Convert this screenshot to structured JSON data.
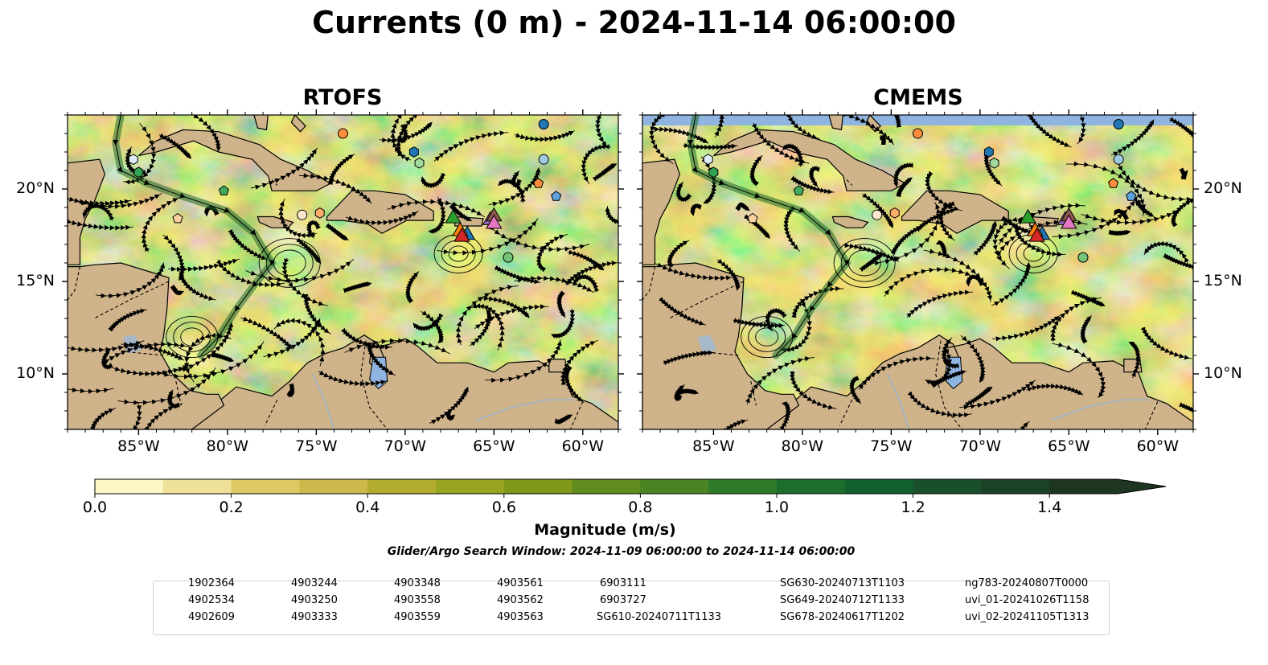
{
  "title": "Currents (0 m) - 2024-11-14 06:00:00",
  "panels": [
    {
      "title": "RTOFS"
    },
    {
      "title": "CMEMS"
    }
  ],
  "map": {
    "lon_range": [
      -89,
      -58
    ],
    "lat_range": [
      7,
      24
    ],
    "lon_ticks": [
      "85°W",
      "80°W",
      "75°W",
      "70°W",
      "65°W",
      "60°W"
    ],
    "lat_ticks": [
      "20°N",
      "15°N",
      "10°N"
    ],
    "colors": {
      "land": "#cfb38a",
      "lake": "#8fb4e0",
      "ocean_low": "#f7efb6",
      "ocean_mid": "#bdb54a",
      "ocean_high": "#1f6b2a"
    }
  },
  "colorbar": {
    "label": "Magnitude (m/s)",
    "range": [
      0,
      1.5
    ],
    "extend": "max",
    "ticks": [
      "0.0",
      "0.2",
      "0.4",
      "0.6",
      "0.8",
      "1.0",
      "1.2",
      "1.4"
    ],
    "colors": [
      "#fbf6c3",
      "#efe09a",
      "#ddc863",
      "#cdb94b",
      "#b3ad2f",
      "#98a51f",
      "#7f9a18",
      "#5f8c1c",
      "#4b8422",
      "#2e7a28",
      "#1d6d2c",
      "#12602e",
      "#194f2b",
      "#1c4226",
      "#1d3521"
    ]
  },
  "search_window": "Glider/Argo Search Window: 2024-11-09 06:00:00 to 2024-11-14 06:00:00",
  "legend": {
    "columns": [
      [
        {
          "label": "1902364",
          "marker": "circle",
          "color": "#1f77b4"
        },
        {
          "label": "4902534",
          "marker": "hexagon",
          "color": "#1f77b4"
        },
        {
          "label": "4902609",
          "marker": "pentagon",
          "color": "#5fa2dd"
        }
      ],
      [
        {
          "label": "4903244",
          "marker": "circle",
          "color": "#9ecae1"
        },
        {
          "label": "4903250",
          "marker": "hexagon",
          "color": "#deebf7"
        },
        {
          "label": "4903333",
          "marker": "pentagon",
          "color": "#fd8d3c"
        }
      ],
      [
        {
          "label": "4903348",
          "marker": "circle",
          "color": "#fd8d3c"
        },
        {
          "label": "4903558",
          "marker": "hexagon",
          "color": "#fdae6b"
        },
        {
          "label": "4903559",
          "marker": "pentagon",
          "color": "#fdd0a2"
        }
      ],
      [
        {
          "label": "4903561",
          "marker": "circle",
          "color": "#fee6ce"
        },
        {
          "label": "4903562",
          "marker": "hexagon",
          "color": "#31a354"
        },
        {
          "label": "4903563",
          "marker": "pentagon",
          "color": "#41ab5d"
        }
      ],
      [
        {
          "label": "6903111",
          "marker": "circle",
          "color": "#74c476"
        },
        {
          "label": "6903727",
          "marker": "hexagon",
          "color": "#a1d99b"
        },
        {
          "label": "SG610-20240711T1133",
          "marker": "triangle",
          "color": "#1f77b4"
        }
      ],
      [
        {
          "label": "SG630-20240713T1103",
          "marker": "triangle",
          "color": "#ff7f0e"
        },
        {
          "label": "SG649-20240712T1133",
          "marker": "triangle",
          "color": "#2ca02c"
        },
        {
          "label": "SG678-20240617T1202",
          "marker": "triangle",
          "color": "#d62728"
        }
      ],
      [
        {
          "label": "ng783-20240807T0000",
          "marker": "triangle",
          "color": "#9467bd"
        },
        {
          "label": "uvi_01-20241026T1158",
          "marker": "triangle",
          "color": "#8c564b"
        },
        {
          "label": "uvi_02-20241105T1313",
          "marker": "triangle",
          "color": "#e377c2"
        }
      ]
    ]
  },
  "observations": [
    {
      "id": "1902364",
      "lon": -62.2,
      "lat": 23.5
    },
    {
      "id": "4902534",
      "lon": -69.5,
      "lat": 22.0
    },
    {
      "id": "4902609",
      "lon": -61.5,
      "lat": 19.6
    },
    {
      "id": "4903244",
      "lon": -62.2,
      "lat": 21.6
    },
    {
      "id": "4903250",
      "lon": -85.3,
      "lat": 21.6
    },
    {
      "id": "4903333",
      "lon": -62.5,
      "lat": 20.3
    },
    {
      "id": "4903348",
      "lon": -73.5,
      "lat": 23.0
    },
    {
      "id": "4903558",
      "lon": -74.8,
      "lat": 18.7
    },
    {
      "id": "4903559",
      "lon": -82.8,
      "lat": 18.4
    },
    {
      "id": "4903561",
      "lon": -75.8,
      "lat": 18.6
    },
    {
      "id": "4903562",
      "lon": -85.0,
      "lat": 20.9
    },
    {
      "id": "4903563",
      "lon": -80.2,
      "lat": 19.9
    },
    {
      "id": "6903111",
      "lon": -64.2,
      "lat": 16.3
    },
    {
      "id": "6903727",
      "lon": -69.2,
      "lat": 21.4
    },
    {
      "id": "SG610-20240711T1133",
      "lon": -66.5,
      "lat": 17.6
    },
    {
      "id": "SG630-20240713T1103",
      "lon": -66.9,
      "lat": 17.8
    },
    {
      "id": "SG649-20240712T1133",
      "lon": -67.3,
      "lat": 18.5
    },
    {
      "id": "SG678-20240617T1202",
      "lon": -66.8,
      "lat": 17.5
    },
    {
      "id": "ng783-20240807T0000",
      "lon": -65.2,
      "lat": 18.4
    },
    {
      "id": "uvi_01-20241026T1158",
      "lon": -65.0,
      "lat": 18.6
    },
    {
      "id": "uvi_02-20241105T1313",
      "lon": -65.0,
      "lat": 18.2
    }
  ]
}
